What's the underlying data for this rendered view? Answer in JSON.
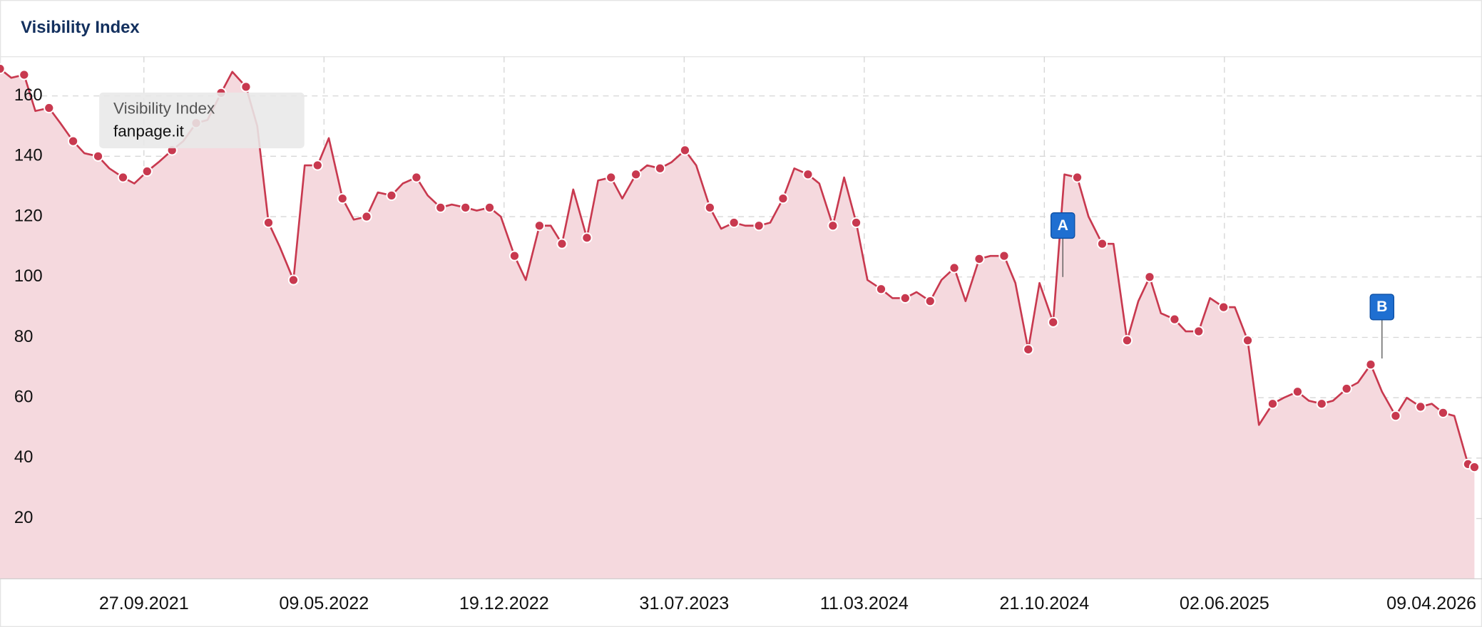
{
  "chart_data": {
    "type": "area",
    "title": "Visibility Index",
    "tooltip": {
      "title": "Visibility Index",
      "label": "fanpage.it"
    },
    "x": [
      "01.04.2021",
      "15.04.2021",
      "01.05.2021",
      "15.05.2021",
      "01.06.2021",
      "15.06.2021",
      "01.07.2021",
      "15.07.2021",
      "01.08.2021",
      "15.08.2021",
      "01.09.2021",
      "15.09.2021",
      "01.10.2021",
      "15.10.2021",
      "01.11.2021",
      "15.11.2021",
      "01.12.2021",
      "15.12.2021",
      "01.01.2022",
      "15.01.2022",
      "01.02.2022",
      "15.02.2022",
      "01.03.2022",
      "15.03.2022",
      "01.04.2022",
      "15.04.2022",
      "01.05.2022",
      "15.05.2022",
      "01.06.2022",
      "15.06.2022",
      "01.07.2022",
      "15.07.2022",
      "01.08.2022",
      "15.08.2022",
      "01.09.2022",
      "15.09.2022",
      "01.10.2022",
      "15.10.2022",
      "01.11.2022",
      "15.11.2022",
      "01.12.2022",
      "15.12.2022",
      "01.01.2023",
      "15.01.2023",
      "01.02.2023",
      "15.02.2023",
      "01.03.2023",
      "15.03.2023",
      "01.04.2023",
      "15.04.2023",
      "01.05.2023",
      "15.05.2023",
      "01.06.2023",
      "15.06.2023",
      "01.07.2023",
      "15.07.2023",
      "01.08.2023",
      "15.08.2023",
      "01.09.2023",
      "15.09.2023",
      "01.10.2023",
      "15.10.2023",
      "01.11.2023",
      "15.11.2023",
      "01.12.2023",
      "15.12.2023",
      "01.01.2024",
      "15.01.2024",
      "01.02.2024",
      "15.02.2024",
      "01.03.2024",
      "15.03.2024",
      "01.04.2024",
      "15.04.2024",
      "01.05.2024",
      "15.05.2024",
      "01.06.2024",
      "15.06.2024",
      "01.07.2024",
      "15.07.2024",
      "01.08.2024",
      "15.08.2024",
      "01.09.2024",
      "15.09.2024",
      "01.10.2024",
      "15.10.2024",
      "01.11.2024",
      "15.11.2024",
      "01.12.2024",
      "15.12.2024",
      "01.01.2025",
      "15.01.2025",
      "01.02.2025",
      "15.02.2025",
      "01.03.2025",
      "15.03.2025",
      "01.04.2025",
      "15.04.2025",
      "01.05.2025",
      "15.05.2025",
      "01.06.2025",
      "15.06.2025",
      "01.07.2025",
      "15.07.2025",
      "01.08.2025",
      "15.08.2025",
      "01.09.2025",
      "15.09.2025",
      "01.10.2025",
      "15.10.2025",
      "01.11.2025",
      "15.11.2025",
      "01.12.2025",
      "15.12.2025",
      "01.01.2026",
      "15.01.2026",
      "01.02.2026",
      "15.02.2026",
      "01.03.2026",
      "15.03.2026",
      "01.04.2026",
      "09.04.2026"
    ],
    "values": [
      169,
      166,
      167,
      155,
      156,
      151,
      145,
      141,
      140,
      136,
      133,
      131,
      135,
      138,
      142,
      145,
      151,
      152,
      161,
      168,
      163,
      150,
      118,
      110,
      99,
      137,
      137,
      146,
      126,
      119,
      120,
      128,
      127,
      131,
      133,
      127,
      123,
      124,
      123,
      122,
      123,
      120,
      107,
      99,
      117,
      117,
      111,
      129,
      113,
      132,
      133,
      126,
      134,
      137,
      136,
      138,
      142,
      137,
      123,
      116,
      118,
      117,
      117,
      118,
      126,
      136,
      134,
      131,
      117,
      133,
      118,
      99,
      96,
      93,
      93,
      95,
      92,
      99,
      103,
      92,
      106,
      107,
      107,
      98,
      76,
      98,
      85,
      134,
      133,
      120,
      111,
      111,
      79,
      92,
      100,
      88,
      86,
      82,
      82,
      93,
      90,
      90,
      79,
      51,
      58,
      60,
      62,
      59,
      58,
      59,
      63,
      65,
      71,
      62,
      54,
      60,
      57,
      58,
      55,
      54,
      38,
      37
    ],
    "color": "#c8394f",
    "fill_color": "#f5d9de",
    "xlim": [
      "01.04.2021",
      "09.04.2026"
    ],
    "xticks": [
      "27.09.2021",
      "09.05.2022",
      "19.12.2022",
      "31.07.2023",
      "11.03.2024",
      "21.10.2024",
      "02.06.2025",
      "09.04.2026"
    ],
    "ylim": [
      0,
      173
    ],
    "yticks": [
      20,
      40,
      60,
      80,
      100,
      120,
      140,
      160
    ],
    "grid": true,
    "annotations": [
      {
        "label": "A",
        "x": "13.11.2024",
        "y": 100
      },
      {
        "label": "B",
        "x": "15.12.2025",
        "y": 73
      }
    ]
  }
}
